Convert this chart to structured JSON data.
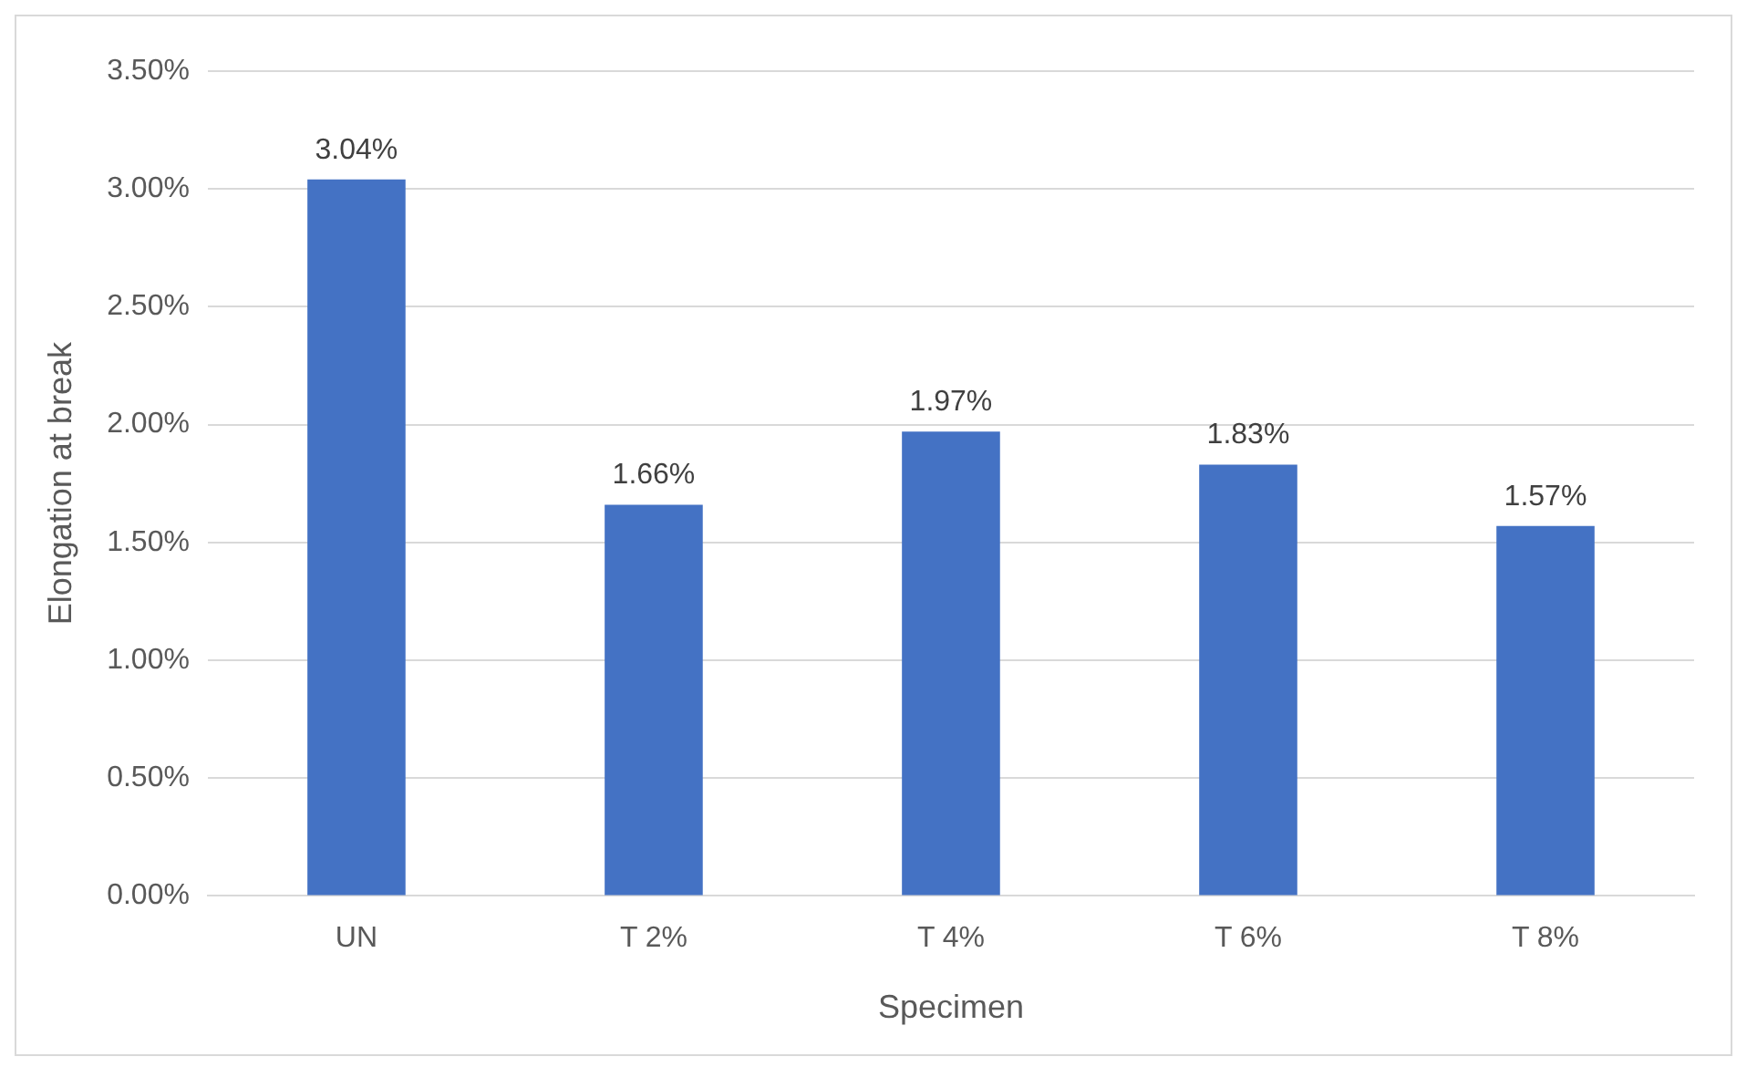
{
  "chart_data": {
    "type": "bar",
    "xlabel": "Specimen",
    "ylabel": "Elongation at break",
    "categories": [
      "UN",
      "T 2%",
      "T 4%",
      "T 6%",
      "T 8%"
    ],
    "values": [
      3.04,
      1.66,
      1.97,
      1.83,
      1.57
    ],
    "value_labels": [
      "3.04%",
      "1.66%",
      "1.97%",
      "1.83%",
      "1.57%"
    ],
    "color": "#4472c4",
    "ylim": [
      0,
      3.5
    ],
    "yticks": [
      {
        "value": 0,
        "label": "0.00%"
      },
      {
        "value": 0.5,
        "label": "0.50%"
      },
      {
        "value": 1,
        "label": "1.00%"
      },
      {
        "value": 1.5,
        "label": "1.50%"
      },
      {
        "value": 2,
        "label": "2.00%"
      },
      {
        "value": 2.5,
        "label": "2.50%"
      },
      {
        "value": 3,
        "label": "3.00%"
      },
      {
        "value": 3.5,
        "label": "3.50%"
      }
    ],
    "grid": "y"
  }
}
